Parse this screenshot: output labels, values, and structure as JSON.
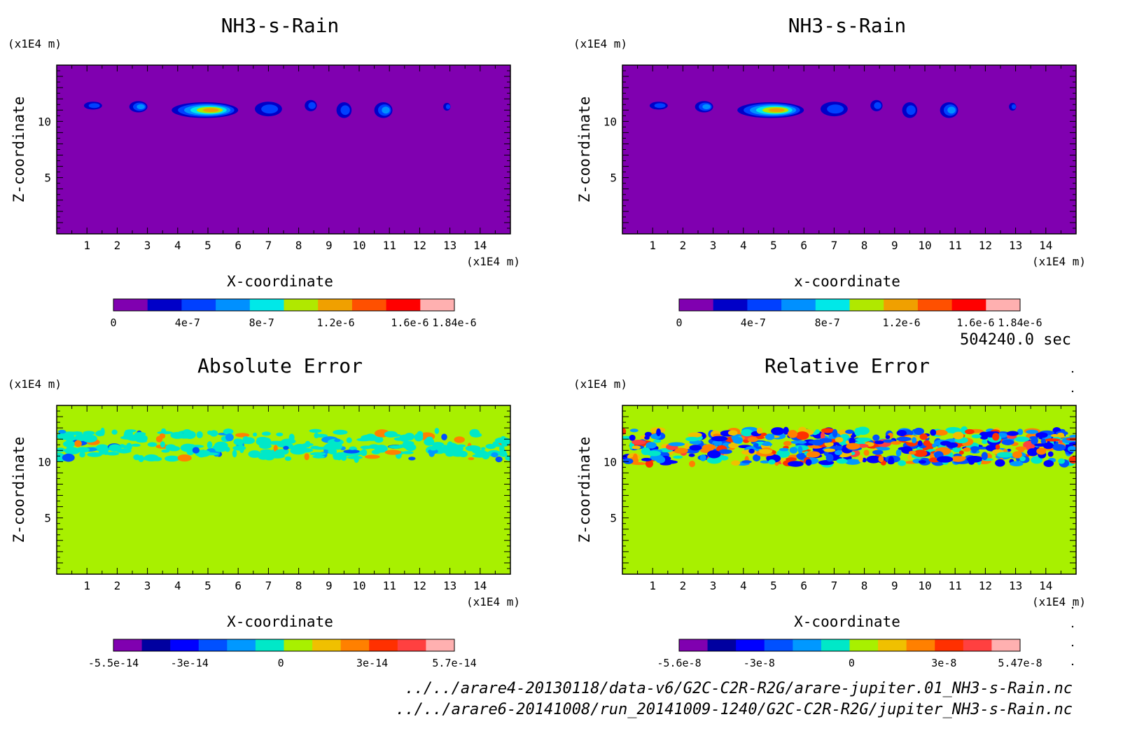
{
  "time_label": "504240.0 sec",
  "file_paths": [
    "../../arare4-20130118/data-v6/G2C-C2R-R2G/arare-jupiter.01_NH3-s-Rain.nc",
    "../../arare6-20141008/run_20141009-1240/G2C-C2R-R2G/jupiter_NH3-s-Rain.nc"
  ],
  "chart_data": [
    {
      "type": "heatmap",
      "title": "NH3-s-Rain",
      "xlabel": "X-coordinate",
      "ylabel": "Z-coordinate",
      "x_unit": "(x1E4 m)",
      "y_unit": "(x1E4 m)",
      "xlim": [
        0,
        15
      ],
      "ylim": [
        0,
        15
      ],
      "xticks": [
        "1",
        "2",
        "3",
        "4",
        "5",
        "6",
        "7",
        "8",
        "9",
        "10",
        "11",
        "12",
        "13",
        "14"
      ],
      "yticks": [
        "5",
        "10"
      ],
      "background": "#8000b0",
      "colorbar": {
        "colors": [
          "#8000b0",
          "#0000c8",
          "#0040ff",
          "#0090ff",
          "#00e8e8",
          "#b0e800",
          "#f0a000",
          "#ff5000",
          "#ff0000",
          "#ffb0b0"
        ],
        "tick_labels": [
          "0",
          "4e-7",
          "8e-7",
          "1.2e-6",
          "1.6e-6",
          "1.84e-6"
        ],
        "tick_values": [
          0,
          4e-07,
          8e-07,
          1.2e-06,
          1.6e-06,
          1.84e-06
        ],
        "range": [
          0,
          1.84e-06
        ]
      },
      "features": [
        {
          "x": 1.2,
          "z": 11.4,
          "rx": 0.3,
          "rz": 0.35,
          "level": 2
        },
        {
          "x": 2.7,
          "z": 11.3,
          "rx": 0.3,
          "rz": 0.5,
          "level": 3
        },
        {
          "x": 4.9,
          "z": 11.0,
          "rx": 1.1,
          "rz": 0.7,
          "level": 6
        },
        {
          "x": 7.0,
          "z": 11.1,
          "rx": 0.45,
          "rz": 0.65,
          "level": 2
        },
        {
          "x": 8.4,
          "z": 11.4,
          "rx": 0.2,
          "rz": 0.5,
          "level": 2
        },
        {
          "x": 9.5,
          "z": 11.0,
          "rx": 0.25,
          "rz": 0.7,
          "level": 2
        },
        {
          "x": 10.8,
          "z": 11.0,
          "rx": 0.3,
          "rz": 0.7,
          "level": 3
        },
        {
          "x": 12.9,
          "z": 11.3,
          "rx": 0.12,
          "rz": 0.35,
          "level": 2
        }
      ]
    },
    {
      "type": "heatmap",
      "title": "NH3-s-Rain",
      "xlabel": "x-coordinate",
      "ylabel": "Z-coordinate",
      "x_unit": "(x1E4 m)",
      "y_unit": "(x1E4 m)",
      "xlim": [
        0,
        15
      ],
      "ylim": [
        0,
        15
      ],
      "xticks": [
        "1",
        "2",
        "3",
        "4",
        "5",
        "6",
        "7",
        "8",
        "9",
        "10",
        "11",
        "12",
        "13",
        "14"
      ],
      "yticks": [
        "5",
        "10"
      ],
      "background": "#8000b0",
      "colorbar": {
        "colors": [
          "#8000b0",
          "#0000c8",
          "#0040ff",
          "#0090ff",
          "#00e8e8",
          "#b0e800",
          "#f0a000",
          "#ff5000",
          "#ff0000",
          "#ffb0b0"
        ],
        "tick_labels": [
          "0",
          "4e-7",
          "8e-7",
          "1.2e-6",
          "1.6e-6",
          "1.84e-6"
        ],
        "tick_values": [
          0,
          4e-07,
          8e-07,
          1.2e-06,
          1.6e-06,
          1.84e-06
        ],
        "range": [
          0,
          1.84e-06
        ]
      },
      "features": [
        {
          "x": 1.2,
          "z": 11.4,
          "rx": 0.3,
          "rz": 0.35,
          "level": 2
        },
        {
          "x": 2.7,
          "z": 11.3,
          "rx": 0.3,
          "rz": 0.5,
          "level": 3
        },
        {
          "x": 4.9,
          "z": 11.0,
          "rx": 1.1,
          "rz": 0.7,
          "level": 6
        },
        {
          "x": 7.0,
          "z": 11.1,
          "rx": 0.45,
          "rz": 0.65,
          "level": 2
        },
        {
          "x": 8.4,
          "z": 11.4,
          "rx": 0.2,
          "rz": 0.5,
          "level": 2
        },
        {
          "x": 9.5,
          "z": 11.0,
          "rx": 0.25,
          "rz": 0.7,
          "level": 2
        },
        {
          "x": 10.8,
          "z": 11.0,
          "rx": 0.3,
          "rz": 0.7,
          "level": 3
        },
        {
          "x": 12.9,
          "z": 11.3,
          "rx": 0.12,
          "rz": 0.35,
          "level": 2
        }
      ]
    },
    {
      "type": "heatmap",
      "title": "Absolute Error",
      "xlabel": "X-coordinate",
      "ylabel": "Z-coordinate",
      "x_unit": "(x1E4 m)",
      "y_unit": "(x1E4 m)",
      "xlim": [
        0,
        15
      ],
      "ylim": [
        0,
        15
      ],
      "xticks": [
        "1",
        "2",
        "3",
        "4",
        "5",
        "6",
        "7",
        "8",
        "9",
        "10",
        "11",
        "12",
        "13",
        "14"
      ],
      "yticks": [
        "5",
        "10"
      ],
      "background": "#a8f000",
      "colorbar": {
        "colors": [
          "#8000b0",
          "#0000a0",
          "#0000ff",
          "#0050ff",
          "#0098ff",
          "#00e8c8",
          "#a8f000",
          "#f0c000",
          "#ff8000",
          "#ff3000",
          "#ff4040",
          "#ffb0b0"
        ],
        "tick_labels": [
          "-5.5e-14",
          "-3e-14",
          "0",
          "3e-14",
          "5.7e-14"
        ],
        "tick_values": [
          -5.5e-14,
          -3e-14,
          0,
          3e-14,
          5.7e-14
        ],
        "range": [
          -5.5e-14,
          5.7e-14
        ]
      },
      "noise": {
        "band": [
          10.2,
          12.8
        ],
        "seed": 7,
        "strength": "light"
      }
    },
    {
      "type": "heatmap",
      "title": "Relative Error",
      "xlabel": "X-coordinate",
      "ylabel": "Z-coordinate",
      "x_unit": "(x1E4 m)",
      "y_unit": "(x1E4 m)",
      "xlim": [
        0,
        15
      ],
      "ylim": [
        0,
        15
      ],
      "xticks": [
        "1",
        "2",
        "3",
        "4",
        "5",
        "6",
        "7",
        "8",
        "9",
        "10",
        "11",
        "12",
        "13",
        "14"
      ],
      "yticks": [
        "5",
        "10"
      ],
      "background": "#a8f000",
      "colorbar": {
        "colors": [
          "#8000b0",
          "#0000a0",
          "#0000ff",
          "#0050ff",
          "#0098ff",
          "#00e8c8",
          "#a8f000",
          "#f0c000",
          "#ff8000",
          "#ff3000",
          "#ff4040",
          "#ffb0b0"
        ],
        "tick_labels": [
          "-5.6e-8",
          "-3e-8",
          "0",
          "3e-8",
          "5.47e-8"
        ],
        "tick_values": [
          -5.6e-08,
          -3e-08,
          0,
          3e-08,
          5.47e-08
        ],
        "range": [
          -5.6e-08,
          5.47e-08
        ]
      },
      "noise": {
        "band": [
          9.8,
          12.8
        ],
        "seed": 13,
        "strength": "strong"
      }
    }
  ]
}
